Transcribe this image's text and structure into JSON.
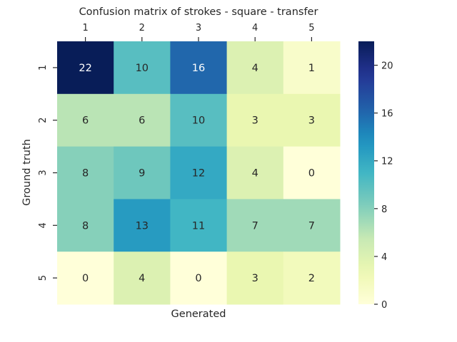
{
  "chart_data": {
    "type": "heatmap",
    "title": "Confusion matrix of strokes - square - transfer",
    "xlabel": "Generated",
    "ylabel": "Ground truth",
    "x_categories": [
      "1",
      "2",
      "3",
      "4",
      "5"
    ],
    "y_categories": [
      "1",
      "2",
      "3",
      "4",
      "5"
    ],
    "values": [
      [
        22,
        10,
        16,
        4,
        1
      ],
      [
        6,
        6,
        10,
        3,
        3
      ],
      [
        8,
        9,
        12,
        4,
        0
      ],
      [
        8,
        13,
        11,
        7,
        7
      ],
      [
        0,
        4,
        0,
        3,
        2
      ]
    ],
    "x_axis_position": "top",
    "colormap": "YlGnBu",
    "colorbar": {
      "min": 0,
      "max": 22,
      "ticks": [
        0,
        4,
        8,
        12,
        16,
        20
      ],
      "tick_labels": [
        "0",
        "4",
        "8",
        "12",
        "16",
        "20"
      ]
    },
    "annotation_colors": {
      "light_bg": "#262626",
      "dark_bg": "#ffffff"
    }
  }
}
